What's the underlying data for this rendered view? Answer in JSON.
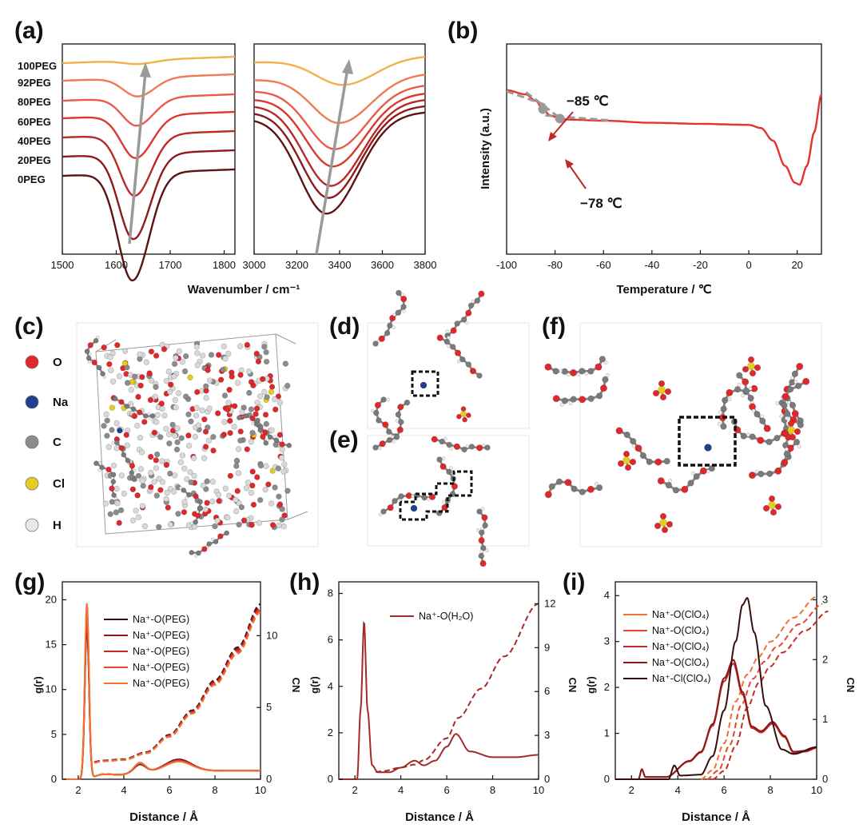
{
  "chart_data": [
    {
      "panel": "(a)",
      "type": "line",
      "title": "",
      "xlabel": "Wavenumber / cm⁻¹",
      "ylabel": "",
      "series_labels": [
        "100PEG",
        "92PEG",
        "80PEG",
        "60PEG",
        "40PEG",
        "20PEG",
        "0PEG"
      ],
      "colors": [
        "#f6b04a",
        "#f07a55",
        "#ea5b4b",
        "#d9392f",
        "#b82a25",
        "#8f1a1c",
        "#5b1414"
      ],
      "subplots": [
        {
          "xlim": [
            1500,
            1820
          ],
          "xticks": [
            "1500",
            "1600",
            "1700",
            "1800"
          ],
          "dip_center": [
            1641,
            1640,
            1638,
            1636,
            1634,
            1632,
            1630
          ],
          "dip_depth": [
            0.02,
            0.1,
            0.15,
            0.23,
            0.33,
            0.46,
            0.58
          ]
        },
        {
          "xlim": [
            3000,
            3800
          ],
          "xticks": [
            "3000",
            "3200",
            "3400",
            "3600",
            "3800"
          ],
          "dip_center": [
            3420,
            3400,
            3380,
            3370,
            3360,
            3350,
            3340
          ],
          "dip_depth": [
            0.14,
            0.25,
            0.33,
            0.38,
            0.45,
            0.48,
            0.53
          ]
        }
      ]
    },
    {
      "panel": "(b)",
      "type": "line",
      "title": "",
      "xlabel": "Temperature / ℃",
      "ylabel": "Intensity (a.u.)",
      "xlim": [
        -100,
        30
      ],
      "xticks": [
        "-100",
        "-80",
        "-60",
        "-40",
        "-20",
        "0",
        "20"
      ],
      "x": [
        -100,
        -92,
        -88,
        -85,
        -82,
        -78,
        -74,
        -60,
        -40,
        -20,
        0,
        5,
        10,
        15,
        19,
        21,
        24,
        27,
        30
      ],
      "y": [
        0.78,
        0.76,
        0.73,
        0.69,
        0.66,
        0.645,
        0.64,
        0.635,
        0.625,
        0.62,
        0.615,
        0.6,
        0.54,
        0.42,
        0.34,
        0.33,
        0.42,
        0.58,
        0.76
      ],
      "color": "#e5322c",
      "annotations": [
        {
          "text": "−85 ℃",
          "x": -85
        },
        {
          "text": "−78 ℃",
          "x": -78
        }
      ]
    },
    {
      "panel": "(g)",
      "type": "line",
      "xlabel": "Distance / Å",
      "ylabel": "g(r)",
      "ylabel_right": "CN",
      "xlim": [
        1.3,
        10
      ],
      "ylim": [
        0,
        22
      ],
      "ylim_right": [
        0,
        13.75
      ],
      "xticks": [
        "2",
        "4",
        "6",
        "8",
        "10"
      ],
      "yticks": [
        "0",
        "5",
        "10",
        "15",
        "20"
      ],
      "yticks_right": [
        "0",
        "5",
        "10"
      ],
      "series": [
        {
          "name": "Na⁺-O(PEG)",
          "color": "#3a0d0d",
          "peak": 17.0
        },
        {
          "name": "Na⁺-O(PEG)",
          "color": "#8a1a1a",
          "peak": 17.6
        },
        {
          "name": "Na⁺-O(PEG)",
          "color": "#c42c23",
          "peak": 18.3
        },
        {
          "name": "Na⁺-O(PEG)",
          "color": "#e8452f",
          "peak": 19.0
        },
        {
          "name": "Na⁺-O(PEG)",
          "color": "#f07232",
          "peak": 19.6
        }
      ],
      "cn_x": [
        2.7,
        3,
        4,
        5,
        6,
        7,
        8,
        9,
        10
      ],
      "cn_y": [
        1.2,
        1.3,
        1.4,
        1.9,
        3.1,
        4.8,
        6.9,
        9.2,
        12.2
      ]
    },
    {
      "panel": "(h)",
      "type": "line",
      "xlabel": "Distance / Å",
      "ylabel": "g(r)",
      "ylabel_right": "CN",
      "xlim": [
        1.3,
        10
      ],
      "ylim": [
        0,
        8.5
      ],
      "ylim_right": [
        0,
        13.5
      ],
      "xticks": [
        "2",
        "4",
        "6",
        "8",
        "10"
      ],
      "yticks": [
        "0",
        "2",
        "4",
        "6",
        "8"
      ],
      "yticks_right": [
        "0",
        "3",
        "6",
        "9",
        "12"
      ],
      "series": [
        {
          "name": "Na⁺-O(H₂O)",
          "color": "#a52a2a"
        }
      ],
      "gr_x": [
        1.3,
        2.1,
        2.25,
        2.4,
        2.55,
        2.75,
        3.0,
        3.5,
        4.0,
        4.6,
        5.0,
        5.5,
        6.0,
        6.4,
        7.0,
        8.0,
        9.0,
        10.0
      ],
      "gr_y": [
        0,
        0,
        3.0,
        6.8,
        3.0,
        0.6,
        0.3,
        0.3,
        0.5,
        0.8,
        0.6,
        0.8,
        1.4,
        1.95,
        1.2,
        0.95,
        0.95,
        1.05
      ],
      "cn_x": [
        2.9,
        3.2,
        4.0,
        4.6,
        5.0,
        6.0,
        6.5,
        7.5,
        8.5,
        10.0
      ],
      "cn_y": [
        0.5,
        0.55,
        0.8,
        1.0,
        1.3,
        2.8,
        4.2,
        6.2,
        8.4,
        12.0
      ]
    },
    {
      "panel": "(i)",
      "type": "line",
      "xlabel": "Distance / Å",
      "ylabel": "g(r)",
      "ylabel_right": "CN",
      "xlim": [
        1.3,
        10
      ],
      "ylim": [
        0,
        4.3
      ],
      "ylim_right": [
        0,
        3.3
      ],
      "xticks": [
        "2",
        "4",
        "6",
        "8",
        "10"
      ],
      "yticks": [
        "0",
        "1",
        "2",
        "3",
        "4"
      ],
      "yticks_right": [
        "0",
        "1",
        "2",
        "3"
      ],
      "series": [
        {
          "name": "Na⁺-O(ClO₄)",
          "color": "#f07232"
        },
        {
          "name": "Na⁺-O(ClO₄)",
          "color": "#e8452f"
        },
        {
          "name": "Na⁺-O(ClO₄)",
          "color": "#c42c23"
        },
        {
          "name": "Na⁺-O(ClO₄)",
          "color": "#8a1a1a"
        },
        {
          "name": "Na⁺-Cl(ClO₄)",
          "color": "#3a0d0d"
        }
      ],
      "gr_o_x": [
        1.3,
        2.3,
        2.45,
        2.6,
        3.5,
        4.5,
        5.0,
        5.5,
        6.0,
        6.4,
        6.8,
        7.2,
        7.6,
        8.1,
        8.6,
        9.0,
        9.5,
        10.0
      ],
      "gr_o_y": [
        0,
        0,
        0.22,
        0.05,
        0.05,
        0.4,
        0.6,
        1.2,
        2.2,
        2.6,
        1.9,
        1.15,
        1.05,
        1.25,
        0.95,
        0.6,
        0.62,
        0.7
      ],
      "gr_cl_x": [
        1.3,
        3.6,
        3.85,
        4.1,
        5.0,
        5.5,
        6.0,
        6.5,
        6.8,
        7.0,
        7.3,
        7.8,
        8.5,
        9.0,
        10.0
      ],
      "gr_cl_y": [
        0,
        0,
        0.3,
        0.08,
        0.1,
        0.5,
        1.5,
        3.0,
        3.8,
        3.95,
        3.2,
        1.6,
        0.65,
        0.55,
        0.7
      ],
      "cn_x": [
        5.0,
        5.5,
        6.0,
        6.5,
        7.0,
        7.5,
        8.0,
        9.0,
        10.0
      ],
      "cn_y": [
        0.0,
        0.15,
        0.6,
        1.3,
        1.75,
        2.05,
        2.3,
        2.7,
        3.05
      ]
    }
  ],
  "structures": {
    "panel_c": "(c)",
    "panel_d": "(d)",
    "panel_e": "(e)",
    "panel_f": "(f)",
    "legend": [
      {
        "label": "O",
        "color": "#e0282a"
      },
      {
        "label": "Na",
        "color": "#1f3f8f"
      },
      {
        "label": "C",
        "color": "#8c8c8c"
      },
      {
        "label": "Cl",
        "color": "#e5cc20"
      },
      {
        "label": "H",
        "color": "#e8e8e8"
      }
    ]
  }
}
